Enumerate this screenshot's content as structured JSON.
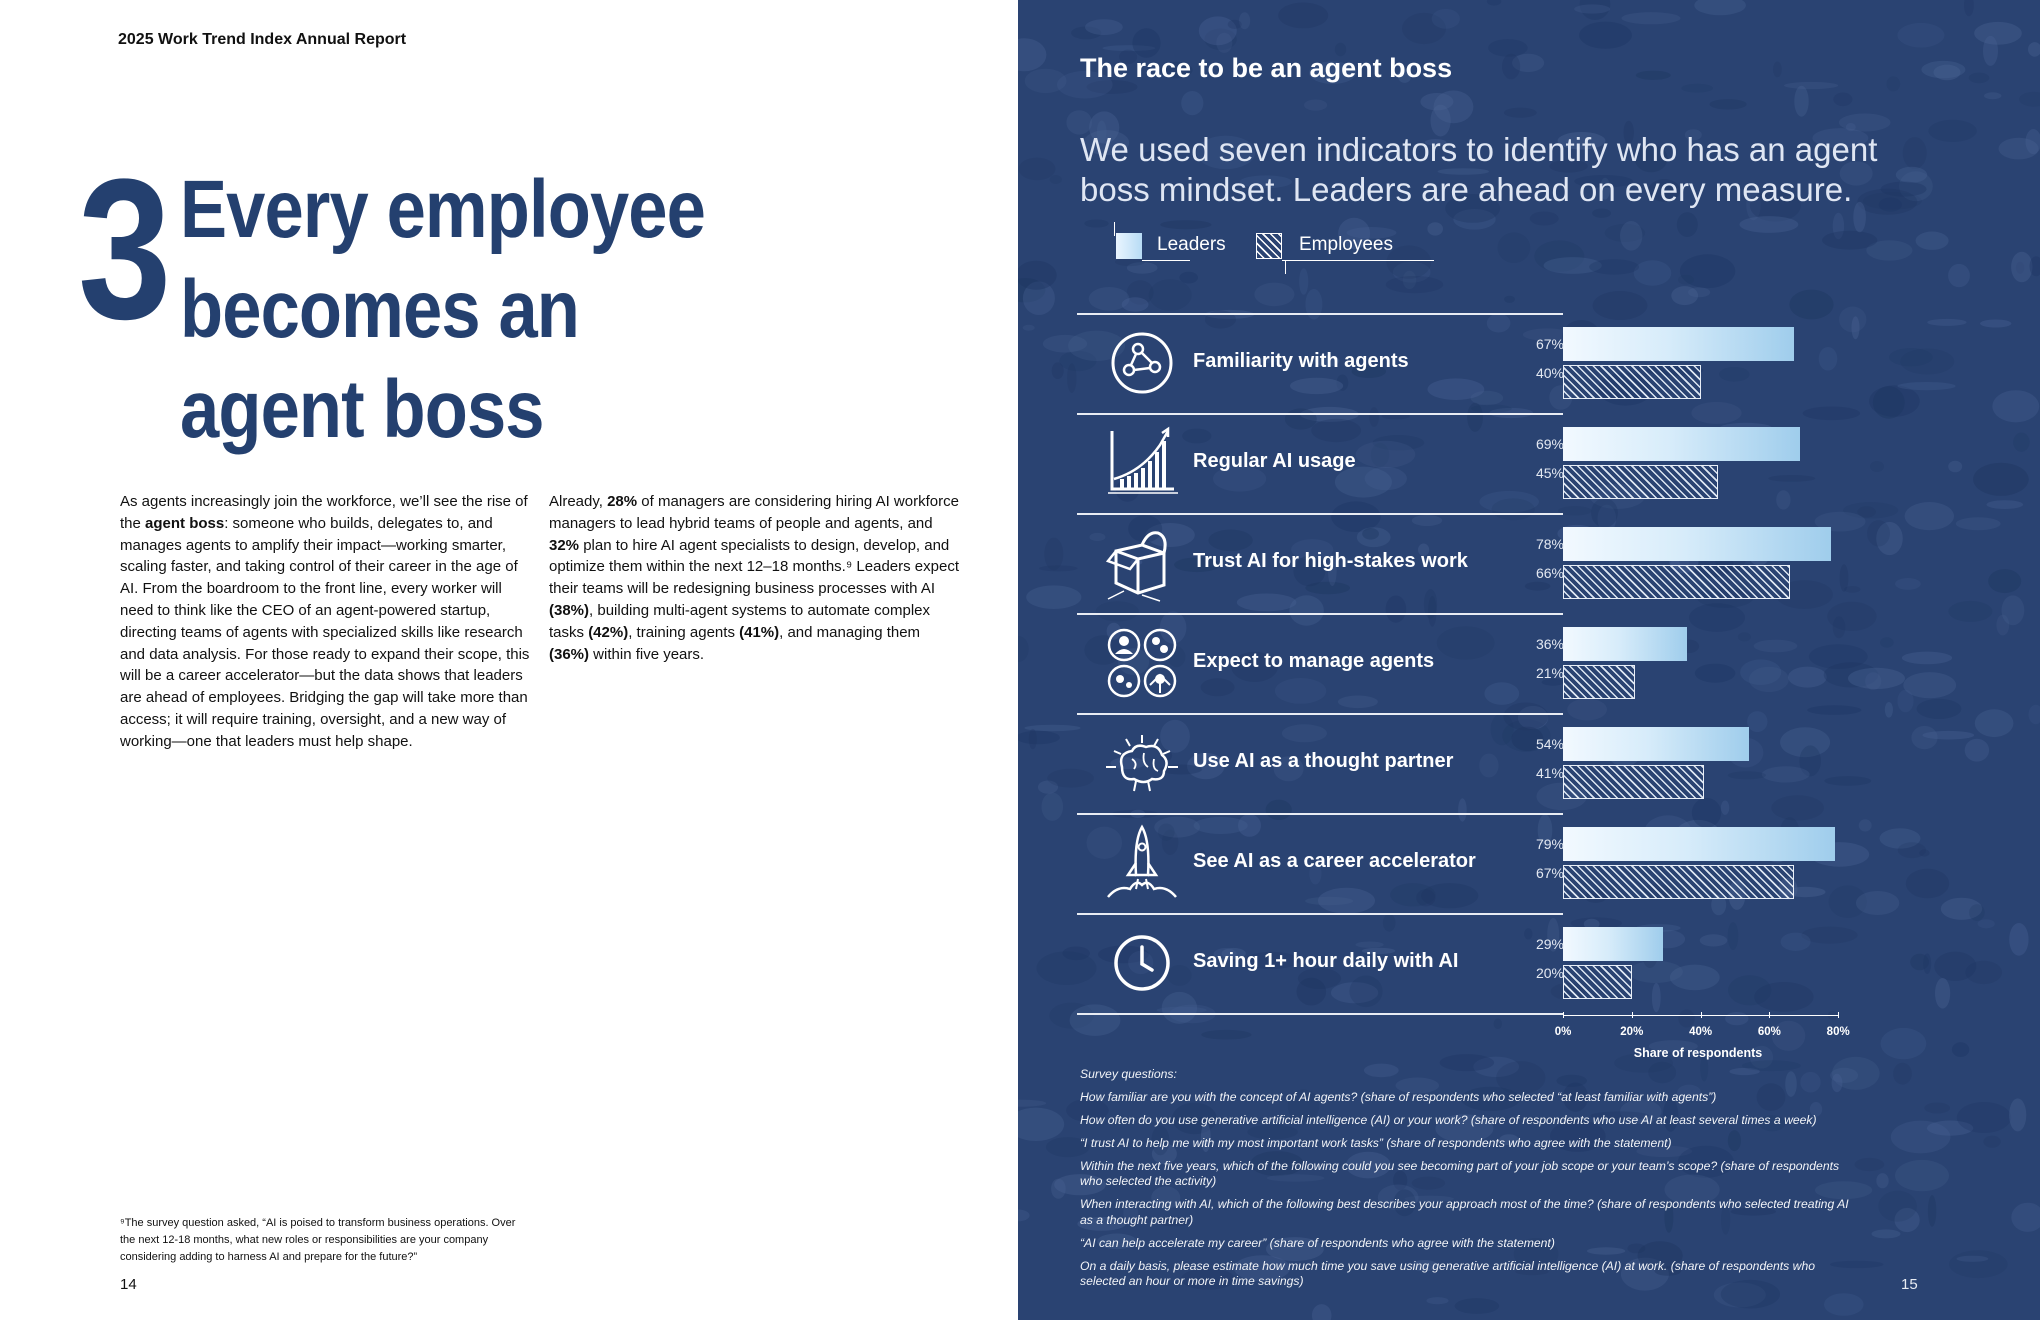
{
  "left_page": {
    "report_title": "2025 Work Trend Index Annual Report",
    "chapter_number": "3",
    "chapter_title_lines": [
      "Every employee",
      "becomes an",
      "agent boss"
    ],
    "column1": [
      {
        "t": "As agents increasingly join the workforce, we’ll see the rise of the "
      },
      {
        "t": "agent boss",
        "b": true
      },
      {
        "t": ": someone who builds, delegates to, and manages agents to amplify their impact—working smarter, scaling faster, and taking control of their career in the age of AI. From the boardroom to the front line, every worker will need to think like the CEO of an agent-powered startup, directing teams of agents with specialized skills like research and data analysis. For those ready to expand their scope, this will be a career accelerator—but the data shows that leaders are ahead of employees. Bridging the gap will take more than access; it will require training, oversight, and a new way of working—one that leaders must help shape."
      }
    ],
    "column2": [
      {
        "t": "Already, "
      },
      {
        "t": "28%",
        "b": true
      },
      {
        "t": " of managers are considering hiring AI workforce managers to lead hybrid teams of people and agents, and "
      },
      {
        "t": "32%",
        "b": true
      },
      {
        "t": " plan to hire AI agent specialists to design, develop, and optimize them within the next 12–18 months.⁹ Leaders expect their teams will be redesigning business processes with AI "
      },
      {
        "t": "(38%)",
        "b": true
      },
      {
        "t": ", building multi-agent systems to automate complex tasks "
      },
      {
        "t": "(42%)",
        "b": true
      },
      {
        "t": ", training agents "
      },
      {
        "t": "(41%)",
        "b": true
      },
      {
        "t": ", and managing them "
      },
      {
        "t": "(36%)",
        "b": true
      },
      {
        "t": " within five years."
      }
    ],
    "footnote": "⁹The survey question asked, “AI is poised to transform business operations. Over the next 12-18 months, what new roles or responsibilities are your company considering adding to harness AI and prepare for the future?”",
    "page_number": "14"
  },
  "right_page": {
    "title": "The race to be an agent boss",
    "subtitle": "We used seven indicators to identify who has an agent boss mindset. Leaders are ahead on every measure.",
    "page_number": "15",
    "survey_heading": "Survey questions:",
    "survey_questions": [
      "How familiar are you with the concept of AI agents? (share of respondents who selected “at least familiar with agents”)",
      "How often do you use generative artificial intelligence (AI) or your work? (share of respondents who use AI at least several times a week)",
      "“I trust AI to help me with my most important work tasks” (share of respondents who agree with the statement)",
      "Within the next five years, which of the following could you see becoming part of your job scope or your team’s scope? (share of respondents who selected the activity)",
      "When interacting with AI, which of the following best describes your approach most of the time? (share of respondents who selected treating AI as a thought partner)",
      "“AI can help accelerate my career” (share of respondents who agree with the statement)",
      "On a daily basis, please estimate how much time you save using generative artificial intelligence (AI) at work. (share of respondents who selected an hour or more in time savings)"
    ]
  },
  "chart_data": {
    "type": "bar",
    "orientation": "horizontal",
    "title": "The race to be an agent boss",
    "legend": [
      "Leaders",
      "Employees"
    ],
    "legend_position": "top-left",
    "categories": [
      "Familiarity with agents",
      "Regular AI usage",
      "Trust AI for high-stakes work",
      "Expect to manage agents",
      "Use AI as a thought partner",
      "See AI as a career accelerator",
      "Saving 1+ hour daily with AI"
    ],
    "icons": [
      "share-nodes-icon",
      "growth-chart-icon",
      "open-box-icon",
      "team-avatars-icon",
      "brain-idea-icon",
      "rocket-icon",
      "clock-icon"
    ],
    "series": [
      {
        "name": "Leaders",
        "values": [
          67,
          69,
          78,
          36,
          54,
          79,
          29
        ]
      },
      {
        "name": "Employees",
        "values": [
          40,
          45,
          66,
          21,
          41,
          67,
          20
        ]
      }
    ],
    "value_labels": {
      "Leaders": [
        "67%",
        "69%",
        "78%",
        "36%",
        "54%",
        "79%",
        "29%"
      ],
      "Employees": [
        "40%",
        "45%",
        "66%",
        "21%",
        "41%",
        "67%",
        "20%"
      ]
    },
    "xlabel": "Share of respondents",
    "xlim": [
      0,
      80
    ],
    "xticks": [
      "0%",
      "20%",
      "40%",
      "60%",
      "80%"
    ],
    "colors": {
      "leaders": "#cfe8f8",
      "employees_hatch": "#dde6f2",
      "panel_bg": "#2a4372",
      "title_blue": "#24406f"
    }
  }
}
